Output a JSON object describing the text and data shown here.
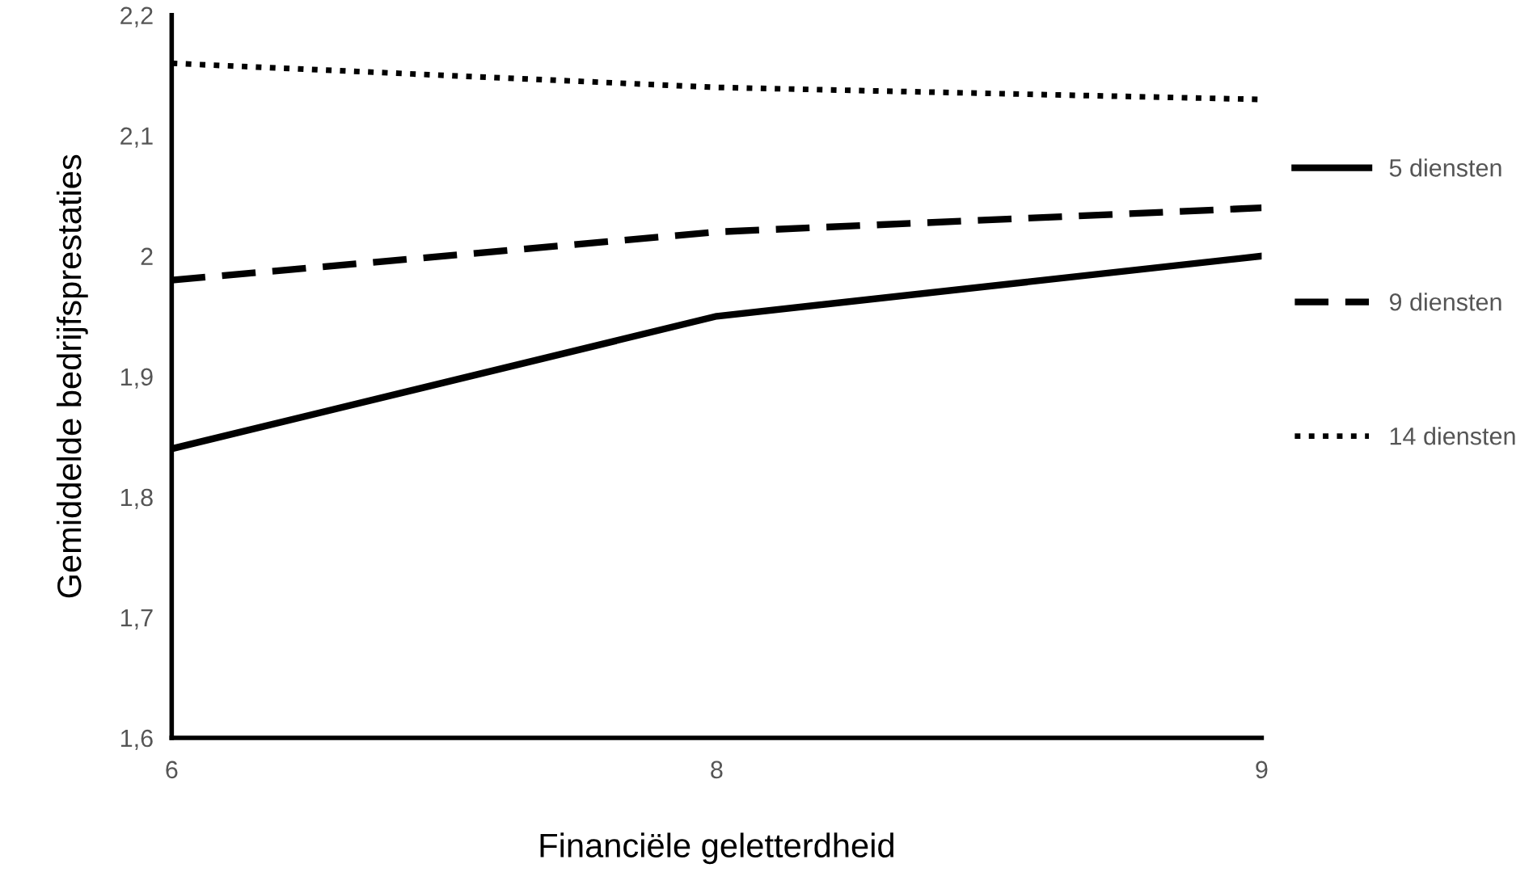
{
  "chart_data": {
    "type": "line",
    "xlabel": "Financiële geletterdheid",
    "ylabel": "Gemiddelde bedrijfsprestaties",
    "categories": [
      "6",
      "8",
      "9"
    ],
    "series": [
      {
        "name": "5 diensten",
        "color": "#000000",
        "line_style": "solid",
        "values": [
          1.84,
          1.95,
          2.0
        ]
      },
      {
        "name": "9 diensten",
        "color": "#000000",
        "line_style": "dashed",
        "values": [
          1.98,
          2.02,
          2.04
        ]
      },
      {
        "name": "14 diensten",
        "color": "#000000",
        "line_style": "dotted",
        "values": [
          2.16,
          2.14,
          2.13
        ]
      }
    ],
    "ylim": [
      1.6,
      2.2
    ],
    "yticks": [
      {
        "value": 1.6,
        "label": "1,6"
      },
      {
        "value": 1.7,
        "label": "1,7"
      },
      {
        "value": 1.8,
        "label": "1,8"
      },
      {
        "value": 1.9,
        "label": "1,9"
      },
      2,
      {
        "value": 2.1,
        "label": "2,1"
      },
      {
        "value": 2.2,
        "label": "2,2"
      }
    ],
    "grid": false,
    "legend": "right",
    "marker": "none"
  }
}
